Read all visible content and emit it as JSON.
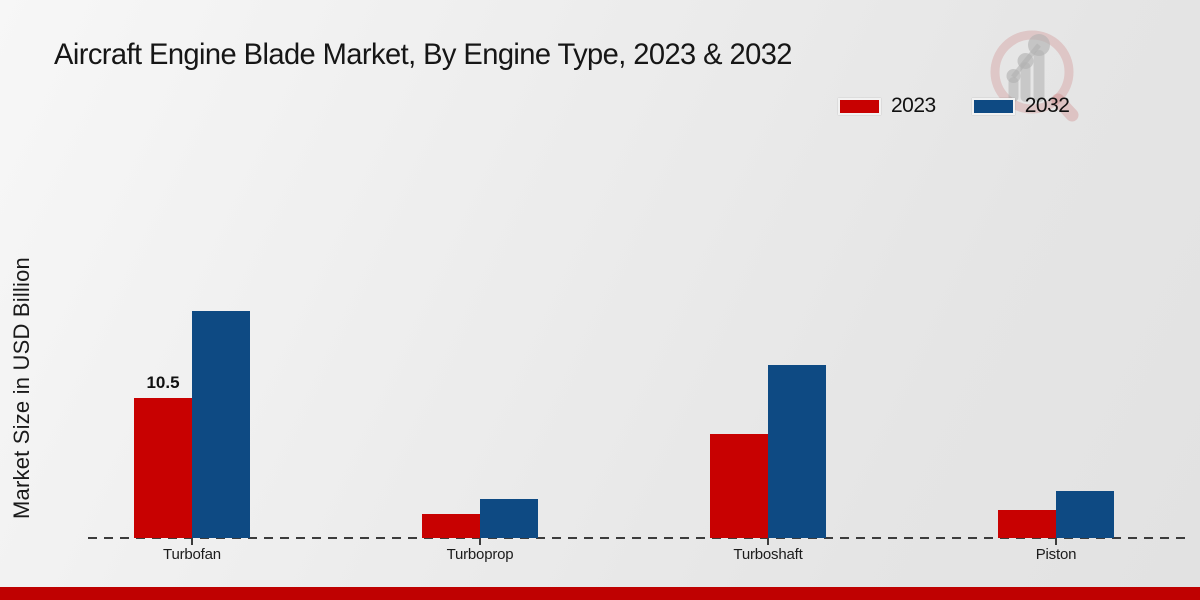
{
  "title": "Aircraft Engine Blade Market, By Engine Type, 2023 & 2032",
  "ylabel": "Market Size in USD Billion",
  "legend": {
    "items": [
      {
        "label": "2023",
        "color": "#c80101"
      },
      {
        "label": "2032",
        "color": "#0e4a83"
      }
    ]
  },
  "logo": {
    "name": "market-research-future-watermark-logo"
  },
  "footer": {
    "bar_color": "#bf0101"
  },
  "colors": {
    "series_2023": "#c80101",
    "series_2032": "#0e4a83",
    "baseline": "#3c3c3c",
    "background": "#ebebeb"
  },
  "chart_data": {
    "type": "bar",
    "title": "Aircraft Engine Blade Market, By Engine Type, 2023 & 2032",
    "xlabel": "",
    "ylabel": "Market Size in USD Billion",
    "categories": [
      "Turbofan",
      "Turboprop",
      "Turboshaft",
      "Piston"
    ],
    "series": [
      {
        "name": "2023",
        "color": "#c80101",
        "values": [
          10.5,
          1.8,
          7.8,
          2.1
        ]
      },
      {
        "name": "2032",
        "color": "#0e4a83",
        "values": [
          17.0,
          2.9,
          13.0,
          3.5
        ]
      }
    ],
    "ylim": [
      0,
      18
    ],
    "grid": false,
    "y_axis_ticks_visible": false,
    "legend_position": "top-right",
    "baseline_style": "dashed",
    "data_labels": [
      {
        "category": "Turbofan",
        "series": "2023",
        "text": "10.5"
      }
    ]
  }
}
